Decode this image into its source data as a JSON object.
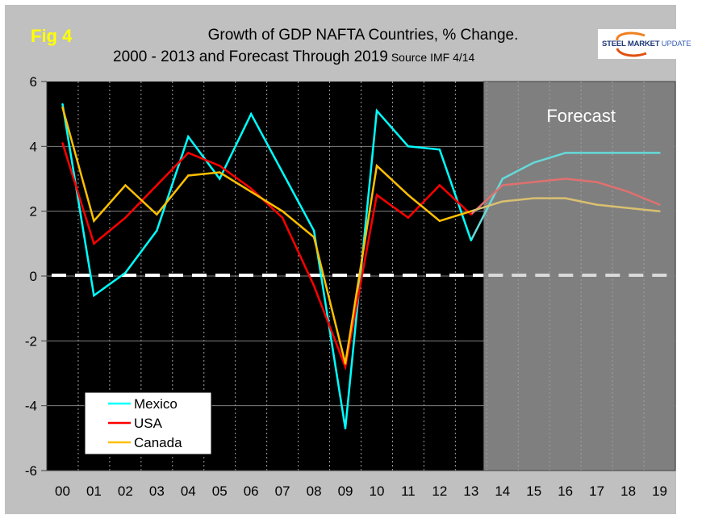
{
  "header": {
    "fig_label": "Fig 4",
    "title_line1": "Growth of GDP NAFTA Countries, % Change.",
    "title_line2": "2000 - 2013 and Forecast Through 2019",
    "source": "Source IMF 4/14"
  },
  "logo": {
    "word1": "STEEL",
    "word2": "MARKET",
    "word3": "UPDATE"
  },
  "colors": {
    "frame_bg": "#c0c0c0",
    "plot_bg": "#000000",
    "forecast_bg": "#7f7f7f",
    "gridline": "#808080",
    "zero_line": "#ffffff",
    "fig_label": "#ffff00"
  },
  "chart_data": {
    "type": "line",
    "title": "Growth of GDP NAFTA Countries, % Change. 2000 - 2013 and Forecast Through 2019",
    "source": "Source IMF 4/14",
    "xlabel": "",
    "ylabel": "",
    "categories": [
      "00",
      "01",
      "02",
      "03",
      "04",
      "05",
      "06",
      "07",
      "08",
      "09",
      "10",
      "11",
      "12",
      "13",
      "14",
      "15",
      "16",
      "17",
      "18",
      "19"
    ],
    "ylim": [
      -6,
      6
    ],
    "yticks": [
      -6,
      -4,
      -2,
      0,
      2,
      4,
      6
    ],
    "grid": {
      "horizontal": true,
      "vertical": "dotted"
    },
    "reference_line": {
      "y": 0,
      "style": "dashed",
      "color": "#ffffff"
    },
    "forecast_region": {
      "start_category": "14",
      "end_category": "19",
      "label": "Forecast",
      "color": "#7f7f7f"
    },
    "legend": {
      "placement": "bottom-left"
    },
    "series": [
      {
        "name": "Mexico",
        "color": "#00ffff",
        "forecast_color": "#66d9d9",
        "values": [
          5.3,
          -0.6,
          0.1,
          1.4,
          4.3,
          3.0,
          5.0,
          3.2,
          1.4,
          -4.7,
          5.1,
          4.0,
          3.9,
          1.1,
          3.0,
          3.5,
          3.8,
          3.8,
          3.8,
          3.8
        ]
      },
      {
        "name": "USA",
        "color": "#ff0000",
        "forecast_color": "#e07070",
        "values": [
          4.1,
          1.0,
          1.8,
          2.8,
          3.8,
          3.4,
          2.7,
          1.8,
          -0.3,
          -2.8,
          2.5,
          1.8,
          2.8,
          1.9,
          2.8,
          2.9,
          3.0,
          2.9,
          2.6,
          2.2
        ]
      },
      {
        "name": "Canada",
        "color": "#ffc000",
        "forecast_color": "#d9c070",
        "values": [
          5.2,
          1.7,
          2.8,
          1.9,
          3.1,
          3.2,
          2.6,
          2.0,
          1.2,
          -2.7,
          3.4,
          2.5,
          1.7,
          2.0,
          2.3,
          2.4,
          2.4,
          2.2,
          2.1,
          2.0
        ]
      }
    ]
  }
}
